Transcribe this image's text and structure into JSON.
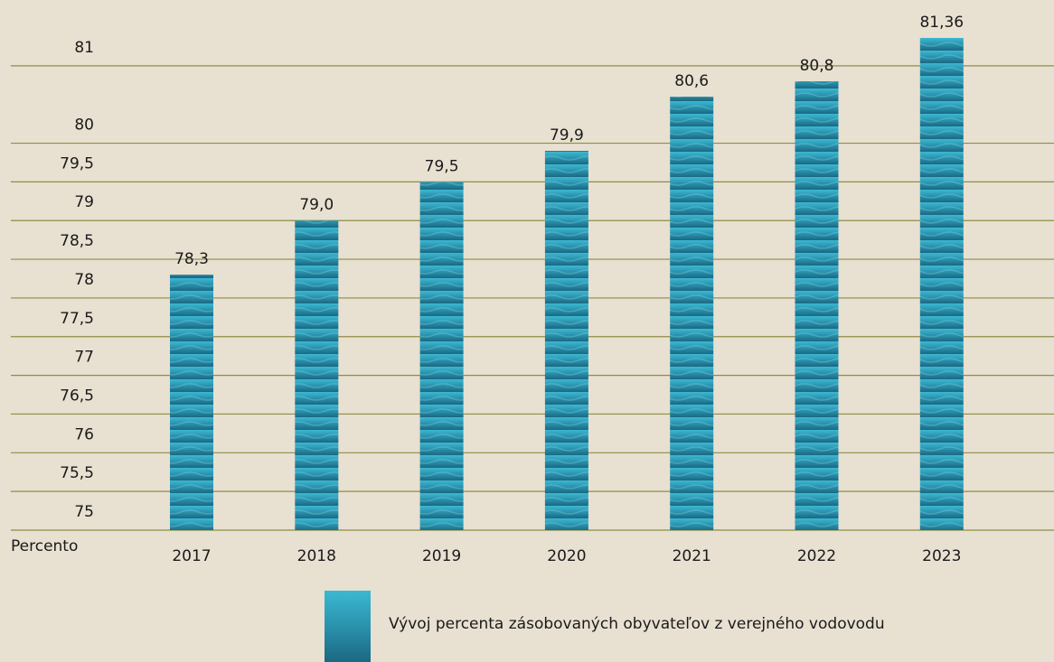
{
  "chart_data": {
    "type": "bar",
    "y_label": "Percento",
    "categories": [
      "2017",
      "2018",
      "2019",
      "2020",
      "2021",
      "2022",
      "2023"
    ],
    "series": [
      {
        "name": "Vývoj percenta zásobovaných obyvateľov z verejného vodovodu",
        "color": "#2a9bb8",
        "values": [
          78.3,
          79.0,
          79.5,
          79.9,
          80.6,
          80.8,
          81.36
        ],
        "value_labels": [
          "78,3",
          "79,0",
          "79,5",
          "79,9",
          "80,6",
          "80,8",
          "81,36"
        ]
      }
    ],
    "ylim": [
      75,
      81.5
    ],
    "yticks": [
      75,
      {
        "value": 75.5,
        "label": "75,5"
      },
      76,
      {
        "value": 76.5,
        "label": "76,5"
      },
      77,
      {
        "value": 77.5,
        "label": "77,5"
      },
      78,
      {
        "value": 78.5,
        "label": "78,5"
      },
      79,
      {
        "value": 79.5,
        "label": "79,5"
      },
      80,
      81
    ],
    "grid": true
  }
}
